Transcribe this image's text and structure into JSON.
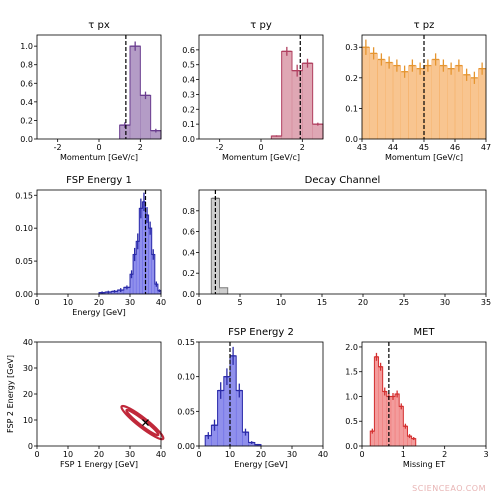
{
  "watermark": "SCIENCEAO.COM",
  "chart_data": [
    {
      "id": "tau_px",
      "type": "bar",
      "title": "τ px",
      "xlabel": "Momentum [GeV/c]",
      "ylabel": "",
      "xlim": [
        -3,
        3
      ],
      "ylim": [
        0,
        1.12
      ],
      "xticks": [
        -2,
        0,
        2
      ],
      "yticks": [
        0.0,
        0.2,
        0.4,
        0.6,
        0.8,
        1.0
      ],
      "ytick_labels": [
        "0.0",
        "0.2",
        "0.4",
        "0.6",
        "0.8",
        "1.0"
      ],
      "bin_edges": [
        1.0,
        1.5,
        2.0,
        2.5,
        3.0
      ],
      "values": [
        0.15,
        1.0,
        0.47,
        0.09
      ],
      "errors": [
        0.03,
        0.05,
        0.04,
        0.02
      ],
      "vline": 1.3,
      "color": "#9b7bb3",
      "edge": "#6a3d8f"
    },
    {
      "id": "tau_py",
      "type": "bar",
      "title": "τ py",
      "xlabel": "Momentum [GeV/c]",
      "ylabel": "",
      "xlim": [
        -3,
        3
      ],
      "ylim": [
        0,
        0.7
      ],
      "xticks": [
        -2,
        0,
        2
      ],
      "yticks": [
        0.0,
        0.1,
        0.2,
        0.3,
        0.4,
        0.5,
        0.6
      ],
      "ytick_labels": [
        "0.0",
        "0.1",
        "0.2",
        "0.3",
        "0.4",
        "0.5",
        "0.6"
      ],
      "bin_edges": [
        0.5,
        1.0,
        1.5,
        2.0,
        2.5,
        3.0
      ],
      "values": [
        0.02,
        0.59,
        0.46,
        0.51,
        0.1
      ],
      "errors": [
        0.005,
        0.03,
        0.04,
        0.03,
        0.01
      ],
      "vline": 1.9,
      "color": "#d4899b",
      "edge": "#b04060"
    },
    {
      "id": "tau_pz",
      "type": "bar",
      "title": "τ pz",
      "xlabel": "Momentum [GeV/c]",
      "ylabel": "",
      "xlim": [
        43,
        47
      ],
      "ylim": [
        0,
        0.34
      ],
      "xticks": [
        43,
        44,
        45,
        46,
        47
      ],
      "yticks": [
        0.0,
        0.1,
        0.2,
        0.3
      ],
      "ytick_labels": [
        "0.0",
        "0.1",
        "0.2",
        "0.3"
      ],
      "bin_edges": [
        43.0,
        43.25,
        43.5,
        43.75,
        44.0,
        44.25,
        44.5,
        44.75,
        45.0,
        45.25,
        45.5,
        45.75,
        46.0,
        46.25,
        46.5,
        46.75,
        47.0
      ],
      "values": [
        0.3,
        0.28,
        0.26,
        0.25,
        0.24,
        0.22,
        0.24,
        0.23,
        0.24,
        0.26,
        0.24,
        0.23,
        0.24,
        0.21,
        0.2,
        0.23
      ],
      "errors": [
        0.025,
        0.02,
        0.02,
        0.02,
        0.02,
        0.02,
        0.02,
        0.02,
        0.02,
        0.02,
        0.02,
        0.02,
        0.02,
        0.02,
        0.02,
        0.02
      ],
      "vline": 45.0,
      "color": "#f6b26b",
      "edge": "#e59530",
      "noStep": true
    },
    {
      "id": "fsp_energy_1",
      "type": "bar",
      "title": "FSP Energy 1",
      "xlabel": "Energy [GeV]",
      "ylabel": "",
      "xlim": [
        0,
        40
      ],
      "ylim": [
        0,
        0.158
      ],
      "xticks": [
        0,
        10,
        20,
        30,
        40
      ],
      "yticks": [
        0.0,
        0.05,
        0.1,
        0.15
      ],
      "ytick_labels": [
        "0.00",
        "0.05",
        "0.10",
        "0.15"
      ],
      "bin_edges": [
        20,
        22,
        24,
        26,
        28,
        30,
        31,
        32,
        33,
        34,
        35,
        36,
        37,
        38,
        39,
        40
      ],
      "values": [
        0.002,
        0.003,
        0.004,
        0.006,
        0.01,
        0.03,
        0.06,
        0.08,
        0.13,
        0.14,
        0.12,
        0.1,
        0.06,
        0.015,
        0.005
      ],
      "errors": [
        0.002,
        0.002,
        0.002,
        0.003,
        0.003,
        0.006,
        0.01,
        0.012,
        0.015,
        0.014,
        0.012,
        0.01,
        0.008,
        0.004,
        0.002
      ],
      "vline": 35.0,
      "color": "#6b6be6",
      "edge": "#2a2aa8"
    },
    {
      "id": "decay_channel",
      "type": "bar",
      "title": "Decay Channel",
      "xlabel": "",
      "ylabel": "",
      "xlim": [
        0,
        35
      ],
      "ylim": [
        0,
        1.0
      ],
      "xticks": [
        0,
        5,
        10,
        15,
        20,
        25,
        30,
        35
      ],
      "yticks": [
        0.0,
        0.2,
        0.4,
        0.6,
        0.8
      ],
      "ytick_labels": [
        "0.0",
        "0.2",
        "0.4",
        "0.6",
        "0.8"
      ],
      "bin_edges": [
        1.5,
        2.5,
        3.5
      ],
      "values": [
        0.92,
        0.06
      ],
      "errors": [
        0.02,
        0.0
      ],
      "vline": 2.0,
      "color": "#bdbdbd",
      "edge": "#7a7a7a"
    },
    {
      "id": "fsp_energy_corr",
      "type": "heatmap",
      "title": "",
      "xlabel": "FSP 1 Energy [GeV]",
      "ylabel": "FSP 2 Energy [GeV]",
      "xlim": [
        0,
        40
      ],
      "ylim": [
        0,
        40
      ],
      "xticks": [
        0,
        10,
        20,
        30,
        40
      ],
      "yticks": [
        0,
        10,
        20,
        30,
        40
      ],
      "ytick_labels": [
        "0",
        "10",
        "20",
        "30",
        "40"
      ],
      "contours": [
        {
          "cx": 34,
          "cy": 9,
          "rx": 8.5,
          "ry": 1.8,
          "angle": 38
        },
        {
          "cx": 34,
          "cy": 9,
          "rx": 6.5,
          "ry": 1.1,
          "angle": 38
        }
      ],
      "marker": [
        35,
        9
      ],
      "color": "#c0283a"
    },
    {
      "id": "fsp_energy_2",
      "type": "bar",
      "title": "FSP Energy 2",
      "xlabel": "Energy [GeV]",
      "ylabel": "",
      "xlim": [
        0,
        40
      ],
      "ylim": [
        0,
        0.15
      ],
      "xticks": [
        0,
        10,
        20,
        30,
        40
      ],
      "yticks": [
        0.0,
        0.05,
        0.1,
        0.15
      ],
      "ytick_labels": [
        "0.00",
        "0.05",
        "0.10",
        "0.15"
      ],
      "bin_edges": [
        2,
        4,
        6,
        8,
        10,
        12,
        14,
        16,
        18,
        20
      ],
      "values": [
        0.015,
        0.03,
        0.08,
        0.1,
        0.13,
        0.08,
        0.02,
        0.005,
        0.002
      ],
      "errors": [
        0.005,
        0.008,
        0.012,
        0.012,
        0.013,
        0.01,
        0.005,
        0.002,
        0.001
      ],
      "vline": 10.0,
      "color": "#6b6be6",
      "edge": "#2a2aa8"
    },
    {
      "id": "met",
      "type": "bar",
      "title": "MET",
      "xlabel": "Missing ET",
      "ylabel": "",
      "xlim": [
        0,
        3
      ],
      "ylim": [
        0,
        2.1
      ],
      "xticks": [
        0,
        1,
        2,
        3
      ],
      "yticks": [
        0.0,
        0.5,
        1.0,
        1.5,
        2.0
      ],
      "ytick_labels": [
        "0.0",
        "0.5",
        "1.0",
        "1.5",
        "2.0"
      ],
      "bin_edges": [
        0.2,
        0.3,
        0.4,
        0.5,
        0.6,
        0.7,
        0.8,
        0.9,
        1.0,
        1.1,
        1.2,
        1.3
      ],
      "values": [
        0.3,
        1.8,
        1.6,
        1.1,
        1.0,
        1.0,
        1.05,
        0.8,
        0.4,
        0.2,
        0.15
      ],
      "errors": [
        0.05,
        0.08,
        0.08,
        0.08,
        0.07,
        0.07,
        0.07,
        0.06,
        0.05,
        0.04,
        0.03
      ],
      "vline": 0.65,
      "color": "#ef7b7b",
      "edge": "#d43030"
    }
  ]
}
